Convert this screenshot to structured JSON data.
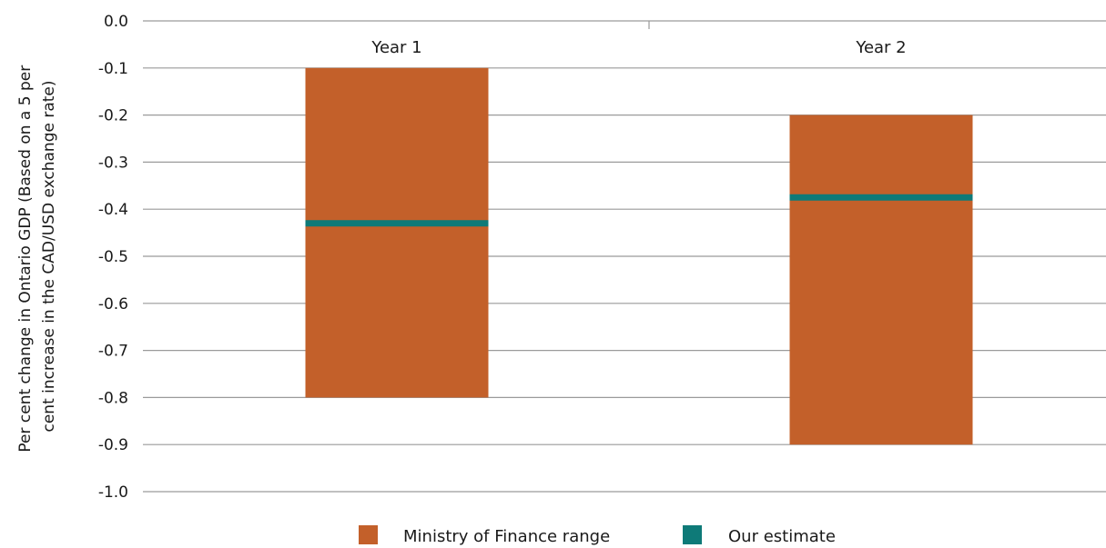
{
  "chart_data": {
    "type": "bar",
    "categories": [
      "Year 1",
      "Year 2"
    ],
    "series": [
      {
        "name": "Ministry of Finance range",
        "type": "range",
        "low": [
          -0.8,
          -0.9
        ],
        "high": [
          -0.1,
          -0.2
        ],
        "color": "#c3602a"
      },
      {
        "name": "Our estimate",
        "type": "marker",
        "values": [
          -0.43,
          -0.375
        ],
        "color": "#0e7a78"
      }
    ],
    "ylabel_lines": [
      "Per cent change in Ontario GDP (Based on a 5 per",
      "cent increase in the CAD/USD exchange rate)"
    ],
    "y_ticks": [
      "0.0",
      "-0.1",
      "-0.2",
      "-0.3",
      "-0.4",
      "-0.5",
      "-0.6",
      "-0.7",
      "-0.8",
      "-0.9",
      "-1.0"
    ],
    "ylim": [
      -1.0,
      0.0
    ],
    "grid": true,
    "legend_position": "bottom"
  }
}
